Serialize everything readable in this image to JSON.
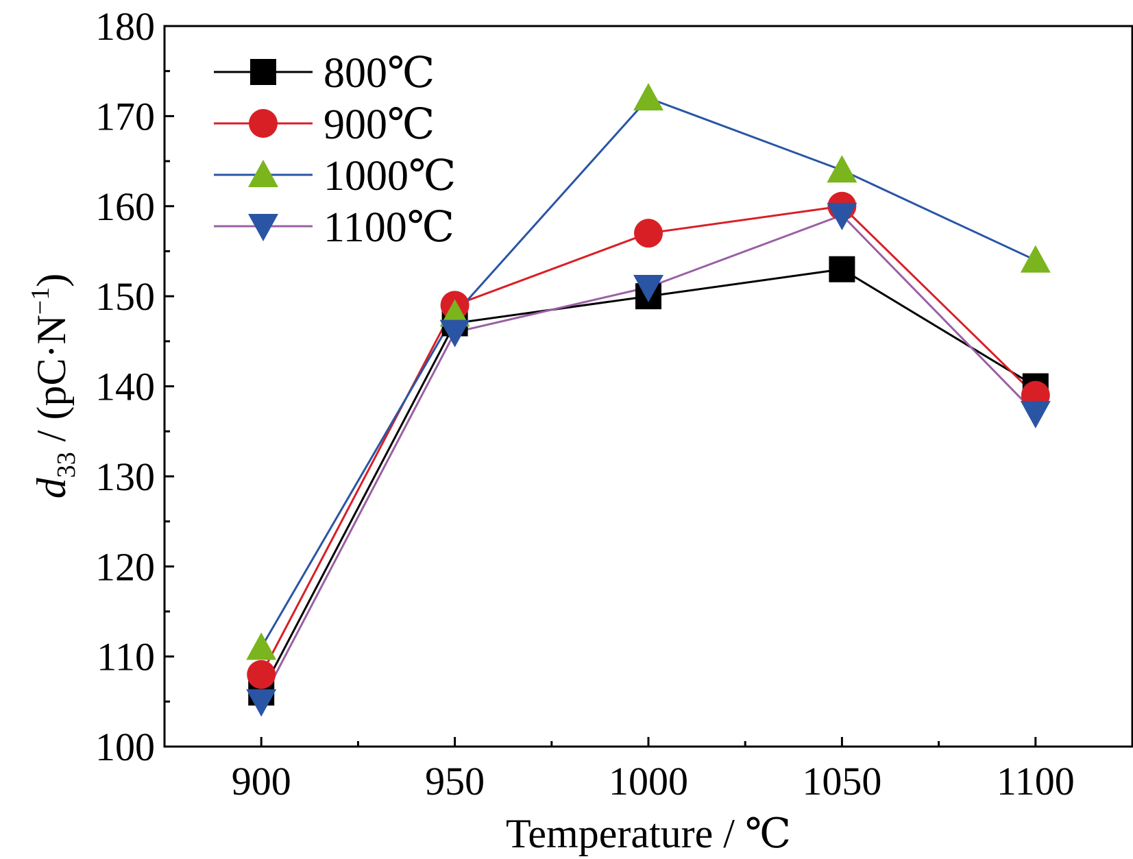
{
  "chart_data": {
    "type": "line",
    "title": "",
    "xlabel": "Temperature / ℃",
    "ylabel": {
      "main": "d",
      "sub": "33",
      "unit_pre": " / (pC·N",
      "sup": "−1",
      "unit_post": ")"
    },
    "x": [
      900,
      950,
      1000,
      1050,
      1100
    ],
    "xlim": [
      875,
      1125
    ],
    "ylim": [
      100,
      180
    ],
    "x_ticks": [
      "900",
      "950",
      "1000",
      "1050",
      "1100"
    ],
    "y_ticks": [
      "100",
      "110",
      "120",
      "130",
      "140",
      "150",
      "160",
      "170",
      "180"
    ],
    "legend_position": "top-left",
    "series": [
      {
        "name": "800℃",
        "values": [
          106,
          147,
          150,
          153,
          140
        ],
        "color": "#000000",
        "marker": "square"
      },
      {
        "name": "900℃",
        "values": [
          108,
          149,
          157,
          160,
          139
        ],
        "color": "#d91f26",
        "marker": "circle"
      },
      {
        "name": "1000℃",
        "values": [
          111,
          148,
          172,
          164,
          154
        ],
        "color": "#2a55a5",
        "marker": "triangle-up",
        "marker_color": "#7ab51d"
      },
      {
        "name": "1100℃",
        "values": [
          105,
          146,
          151,
          159,
          137
        ],
        "color": "#9a5fa4",
        "marker": "triangle-down",
        "marker_color": "#2a55a5"
      }
    ]
  }
}
